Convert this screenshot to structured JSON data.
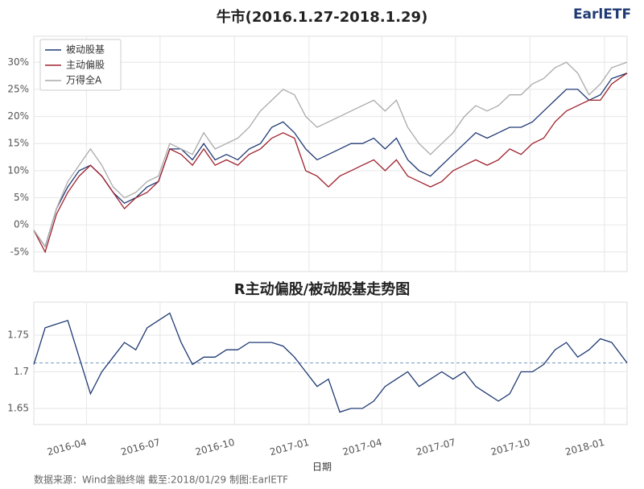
{
  "logo": "EarlETF",
  "source": "数据来源：Wind金融终端 截至:2018/01/29 制图:EarlETF",
  "chart_data": [
    {
      "type": "line",
      "title": "牛市(2016.1.27-2018.1.29)",
      "x": [
        "2016-01-27",
        "2016-02-10",
        "2016-02-24",
        "2016-03-09",
        "2016-03-23",
        "2016-04-06",
        "2016-04-20",
        "2016-05-04",
        "2016-05-18",
        "2016-06-01",
        "2016-06-15",
        "2016-06-29",
        "2016-07-13",
        "2016-07-27",
        "2016-08-10",
        "2016-08-24",
        "2016-09-07",
        "2016-09-21",
        "2016-10-05",
        "2016-10-19",
        "2016-11-02",
        "2016-11-16",
        "2016-11-30",
        "2016-12-14",
        "2016-12-28",
        "2017-01-11",
        "2017-01-25",
        "2017-02-08",
        "2017-02-22",
        "2017-03-08",
        "2017-03-22",
        "2017-04-05",
        "2017-04-19",
        "2017-05-03",
        "2017-05-17",
        "2017-05-31",
        "2017-06-14",
        "2017-06-28",
        "2017-07-12",
        "2017-07-26",
        "2017-08-09",
        "2017-08-23",
        "2017-09-06",
        "2017-09-20",
        "2017-10-04",
        "2017-10-18",
        "2017-11-01",
        "2017-11-15",
        "2017-11-29",
        "2017-12-13",
        "2017-12-27",
        "2018-01-10",
        "2018-01-29"
      ],
      "series": [
        {
          "name": "被动股基",
          "color": "#1f3a73",
          "values": [
            -1,
            -4,
            3,
            7,
            10,
            11,
            9,
            6,
            4,
            5,
            7,
            8,
            14,
            14,
            12,
            15,
            12,
            13,
            12,
            14,
            15,
            18,
            19,
            17,
            14,
            12,
            13,
            14,
            15,
            15,
            16,
            14,
            16,
            12,
            10,
            9,
            11,
            13,
            15,
            17,
            16,
            17,
            18,
            18,
            19,
            21,
            23,
            25,
            25,
            23,
            24,
            27,
            28
          ]
        },
        {
          "name": "主动偏股",
          "color": "#a0212c",
          "values": [
            -1,
            -5,
            2,
            6,
            9,
            11,
            9,
            6,
            3,
            5,
            6,
            8,
            14,
            13,
            11,
            14,
            11,
            12,
            11,
            13,
            14,
            16,
            17,
            16,
            10,
            9,
            7,
            9,
            10,
            11,
            12,
            10,
            12,
            9,
            8,
            7,
            8,
            10,
            11,
            12,
            11,
            12,
            14,
            13,
            15,
            16,
            19,
            21,
            22,
            23,
            23,
            26,
            28
          ]
        },
        {
          "name": "万得全A",
          "color": "#aaaaaa",
          "values": [
            -1,
            -4,
            3,
            8,
            11,
            14,
            11,
            7,
            5,
            6,
            8,
            9,
            15,
            14,
            13,
            17,
            14,
            15,
            16,
            18,
            21,
            23,
            25,
            24,
            20,
            18,
            19,
            20,
            21,
            22,
            23,
            21,
            23,
            18,
            15,
            13,
            15,
            17,
            20,
            22,
            21,
            22,
            24,
            24,
            26,
            27,
            29,
            30,
            28,
            24,
            26,
            29,
            30
          ]
        }
      ],
      "xlim": [
        "2016-01-27",
        "2018-01-29"
      ],
      "ylim": [
        -8.6,
        34.8
      ],
      "yticks": [
        {
          "value": -5,
          "label": "-5%"
        },
        {
          "value": 0,
          "label": "0%"
        },
        {
          "value": 5,
          "label": "5%"
        },
        {
          "value": 10,
          "label": "10%"
        },
        {
          "value": 15,
          "label": "15%"
        },
        {
          "value": 20,
          "label": "20%"
        },
        {
          "value": 25,
          "label": "25%"
        },
        {
          "value": 30,
          "label": "30%"
        }
      ],
      "grid": true,
      "legend": "upper left"
    },
    {
      "type": "line",
      "title": "R主动偏股/被动股基走势图",
      "xlabel": "日期",
      "x": [
        "2016-01-27",
        "2016-02-10",
        "2016-02-24",
        "2016-03-09",
        "2016-03-23",
        "2016-04-06",
        "2016-04-20",
        "2016-05-04",
        "2016-05-18",
        "2016-06-01",
        "2016-06-15",
        "2016-06-29",
        "2016-07-13",
        "2016-07-27",
        "2016-08-10",
        "2016-08-24",
        "2016-09-07",
        "2016-09-21",
        "2016-10-05",
        "2016-10-19",
        "2016-11-02",
        "2016-11-16",
        "2016-11-30",
        "2016-12-14",
        "2016-12-28",
        "2017-01-11",
        "2017-01-25",
        "2017-02-08",
        "2017-02-22",
        "2017-03-08",
        "2017-03-22",
        "2017-04-05",
        "2017-04-19",
        "2017-05-03",
        "2017-05-17",
        "2017-05-31",
        "2017-06-14",
        "2017-06-28",
        "2017-07-12",
        "2017-07-26",
        "2017-08-09",
        "2017-08-23",
        "2017-09-06",
        "2017-09-20",
        "2017-10-04",
        "2017-10-18",
        "2017-11-01",
        "2017-11-15",
        "2017-11-29",
        "2017-12-13",
        "2017-12-27",
        "2018-01-10",
        "2018-01-29"
      ],
      "series": [
        {
          "color": "#1f3a73",
          "values": [
            1.71,
            1.76,
            1.765,
            1.77,
            1.72,
            1.67,
            1.7,
            1.72,
            1.74,
            1.73,
            1.76,
            1.77,
            1.78,
            1.74,
            1.71,
            1.72,
            1.72,
            1.73,
            1.73,
            1.74,
            1.74,
            1.74,
            1.735,
            1.72,
            1.7,
            1.68,
            1.69,
            1.645,
            1.65,
            1.65,
            1.66,
            1.68,
            1.69,
            1.7,
            1.68,
            1.69,
            1.7,
            1.69,
            1.7,
            1.68,
            1.67,
            1.66,
            1.67,
            1.7,
            1.7,
            1.71,
            1.73,
            1.74,
            1.72,
            1.73,
            1.745,
            1.74,
            1.712
          ]
        }
      ],
      "hline": 1.712,
      "hline_color": "#7a9cc0",
      "xlim": [
        "2016-01-27",
        "2018-01-29"
      ],
      "xticks": [
        {
          "value": "2016-04-01",
          "label": "2016-04"
        },
        {
          "value": "2016-07-01",
          "label": "2016-07"
        },
        {
          "value": "2016-10-01",
          "label": "2016-10"
        },
        {
          "value": "2017-01-01",
          "label": "2017-01"
        },
        {
          "value": "2017-04-01",
          "label": "2017-04"
        },
        {
          "value": "2017-07-01",
          "label": "2017-07"
        },
        {
          "value": "2017-10-01",
          "label": "2017-10"
        },
        {
          "value": "2018-01-01",
          "label": "2018-01"
        }
      ],
      "ylim": [
        1.628,
        1.795
      ],
      "yticks": [
        1.65,
        1.7,
        1.75
      ],
      "grid": true
    }
  ]
}
